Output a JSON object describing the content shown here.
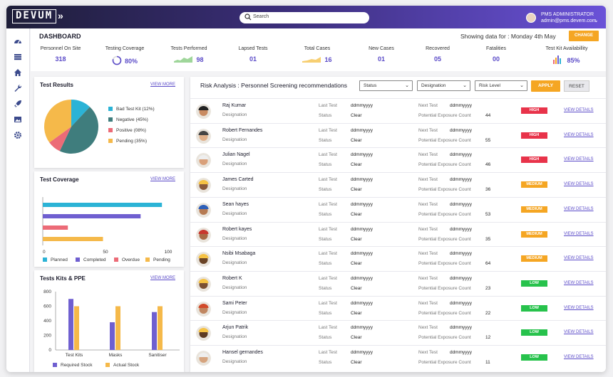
{
  "app": {
    "logo": "DEVUM",
    "expand_glyph": "»"
  },
  "search": {
    "placeholder": "Search"
  },
  "user": {
    "role": "PMS ADMINISTRATOR",
    "email": "admin@pms.devem.com"
  },
  "dashboard": {
    "title": "DASHBOARD",
    "showing": "Showing data for : Monday 4th May",
    "change_label": "CHANGE",
    "stats": [
      {
        "label": "Personnel On Site",
        "value": "318"
      },
      {
        "label": "Testing Coverage",
        "value": "80%"
      },
      {
        "label": "Tests Performed",
        "value": "98"
      },
      {
        "label": "Lapsed Tests",
        "value": "01"
      },
      {
        "label": "Total Cases",
        "value": "16"
      },
      {
        "label": "New Cases",
        "value": "01"
      },
      {
        "label": "Recovered",
        "value": "05"
      },
      {
        "label": "Fatalities",
        "value": "00"
      },
      {
        "label": "Test Kit Availabillity",
        "value": "85%"
      }
    ]
  },
  "test_results": {
    "title": "Test Results",
    "view_more": "VIEW MORE",
    "legend": [
      {
        "label": "Bad Test Kit (12%)",
        "color": "#2bb3d6"
      },
      {
        "label": "Negative (45%)",
        "color": "#3f7d7d"
      },
      {
        "label": "Positive (08%)",
        "color": "#ec6b77"
      },
      {
        "label": "Pending (35%)",
        "color": "#f5b94a"
      }
    ]
  },
  "test_coverage": {
    "title": "Test Coverage",
    "view_more": "VIEW MORE",
    "ticks": [
      "0",
      "50",
      "100"
    ],
    "legend": [
      {
        "label": "Planned",
        "color": "#2bb3d6"
      },
      {
        "label": "Completed",
        "color": "#6f5fd0"
      },
      {
        "label": "Overdue",
        "color": "#ec6b77"
      },
      {
        "label": "Pending",
        "color": "#f5b94a"
      }
    ]
  },
  "kits": {
    "title": "Tests Kits & PPE",
    "view_more": "VIEW MORE",
    "yticks": [
      "800",
      "600",
      "400",
      "200",
      "0"
    ],
    "legend": [
      {
        "label": "Required Stock",
        "color": "#6f5fd0"
      },
      {
        "label": "Actual Stock",
        "color": "#f5b94a"
      }
    ]
  },
  "chart_data": [
    {
      "type": "pie",
      "title": "Test Results",
      "categories": [
        "Bad Test Kit",
        "Negative",
        "Positive",
        "Pending"
      ],
      "values": [
        12,
        45,
        8,
        35
      ]
    },
    {
      "type": "bar",
      "title": "Test Coverage",
      "categories": [
        "Planned",
        "Completed",
        "Overdue",
        "Pending"
      ],
      "values": [
        95,
        78,
        20,
        48
      ],
      "xlim": [
        0,
        100
      ]
    },
    {
      "type": "bar",
      "title": "Tests Kits & PPE",
      "categories": [
        "Test Kits",
        "Masks",
        "Sanitiser"
      ],
      "series": [
        {
          "name": "Required Stock",
          "values": [
            700,
            380,
            520
          ]
        },
        {
          "name": "Actual Stock",
          "values": [
            600,
            600,
            600
          ]
        }
      ],
      "ylim": [
        0,
        800
      ]
    }
  ],
  "risk": {
    "title": "Risk Analysis : Personnel Screening recommendations",
    "filters": [
      "Status",
      "Designation",
      "Risk Level"
    ],
    "apply": "APPLY",
    "reset": "RESET",
    "labels": {
      "designation": "Designation",
      "last_test": "Last Test",
      "status": "Status",
      "next_test": "Next Test",
      "exposure": "Potential Exposure Count",
      "view": "VIEW DETAILS"
    },
    "rows": [
      {
        "name": "Raj Kumar",
        "last": "ddmmyyyy",
        "status": "Clear",
        "next": "ddmmyyyy",
        "count": "44",
        "level": "HIGH"
      },
      {
        "name": "Robert Fernandes",
        "last": "ddmmyyyy",
        "status": "Clear",
        "next": "ddmmyyyy",
        "count": "55",
        "level": "HIGH"
      },
      {
        "name": "Julian Nagel",
        "last": "ddmmyyyy",
        "status": "Clear",
        "next": "ddmmyyyy",
        "count": "46",
        "level": "HIGH"
      },
      {
        "name": "James Carted",
        "last": "ddmmyyyy",
        "status": "Clear",
        "next": "ddmmyyyy",
        "count": "36",
        "level": "MEDIUM"
      },
      {
        "name": "Sean hayes",
        "last": "ddmmyyyy",
        "status": "Clear",
        "next": "ddmmyyyy",
        "count": "53",
        "level": "MEDIUM"
      },
      {
        "name": "Robert kayes",
        "last": "ddmmyyyy",
        "status": "Clear",
        "next": "ddmmyyyy",
        "count": "35",
        "level": "MEDIUM"
      },
      {
        "name": "Nsibi Msabaga",
        "last": "ddmmyyyy",
        "status": "Clear",
        "next": "ddmmyyyy",
        "count": "64",
        "level": "MEDIUM"
      },
      {
        "name": "Robert K",
        "last": "ddmmyyyy",
        "status": "Clear",
        "next": "ddmmyyyy",
        "count": "23",
        "level": "LOW"
      },
      {
        "name": "Sami Peter",
        "last": "ddmmyyyy",
        "status": "Clear",
        "next": "ddmmyyyy",
        "count": "22",
        "level": "LOW"
      },
      {
        "name": "Arjun Patrik",
        "last": "ddmmyyyy",
        "status": "Clear",
        "next": "ddmmyyyy",
        "count": "12",
        "level": "LOW"
      },
      {
        "name": "Hansel gernandes",
        "last": "ddmmyyyy",
        "status": "Clear",
        "next": "ddmmyyyy",
        "count": "11",
        "level": "LOW"
      }
    ]
  },
  "colors": {
    "accent": "#5b4bc8",
    "orange": "#f5a623",
    "high": "#e8334a",
    "medium": "#f5a623",
    "low": "#27c24c"
  },
  "icons": [
    "dashboard-icon",
    "list-icon",
    "home-icon",
    "wrench-icon",
    "rocket-icon",
    "image-icon",
    "gear-icon"
  ]
}
